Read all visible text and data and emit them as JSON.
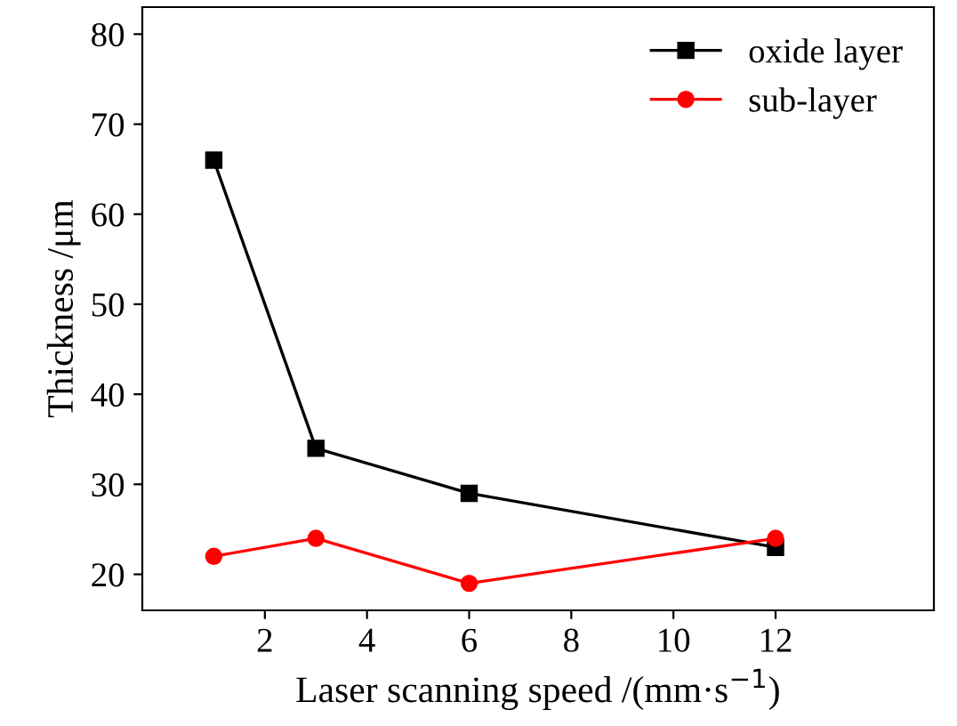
{
  "chart_data": {
    "type": "line",
    "xlabel": "Laser scanning speed /(mm·s$^{−1}$)",
    "ylabel": "Thickness /μm",
    "x": [
      1,
      3,
      6,
      12
    ],
    "series": [
      {
        "name": "oxide layer",
        "color": "#000000",
        "values": [
          66,
          34,
          29,
          23
        ],
        "marker": "square"
      },
      {
        "name": "sub-layer",
        "color": "#ff0000",
        "values": [
          22,
          24,
          19,
          24
        ],
        "marker": "circle"
      }
    ],
    "xlim": [
      -0.4,
      15.1
    ],
    "xticks": [
      2,
      4,
      6,
      8,
      10,
      12
    ],
    "ylim": [
      16,
      83
    ],
    "yticks": [
      20,
      30,
      40,
      50,
      60,
      70,
      80
    ],
    "grid": false,
    "legend": "top right",
    "line_style": "solid"
  }
}
